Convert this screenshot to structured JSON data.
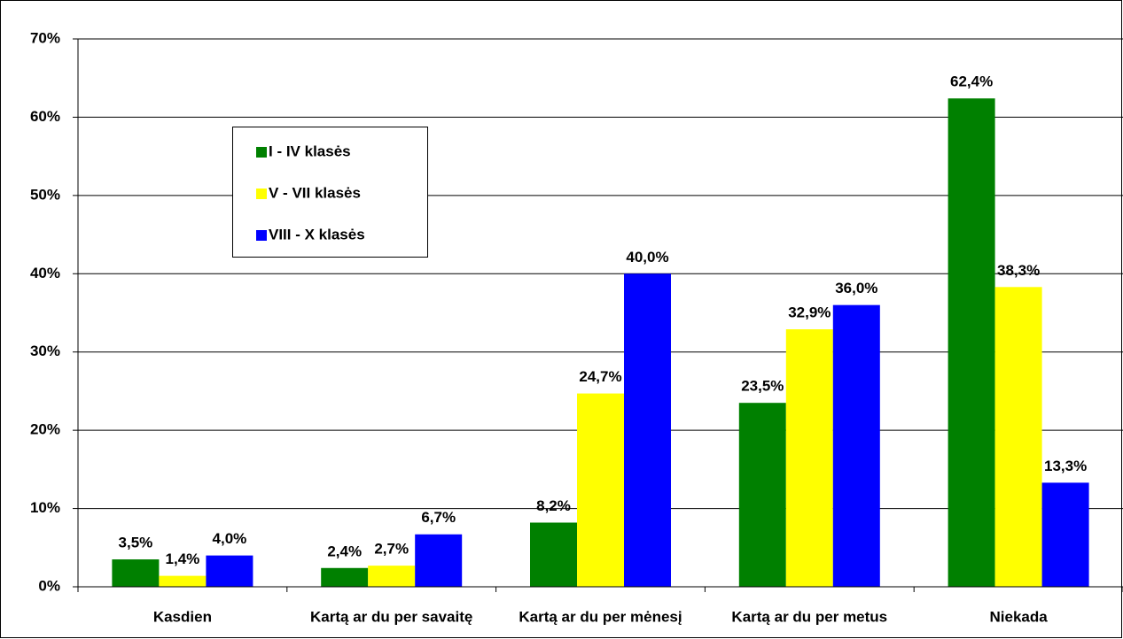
{
  "chart_data": {
    "type": "bar",
    "categories": [
      "Kasdien",
      "Kartą ar du per savaitę",
      "Kartą ar du per mėnesį",
      "Kartą ar du per metus",
      "Niekada"
    ],
    "series": [
      {
        "name": "I - IV klasės",
        "color": "#008000",
        "values": [
          3.5,
          2.4,
          8.2,
          23.5,
          62.4
        ],
        "value_labels": [
          "3,5%",
          "2,4%",
          "8,2%",
          "23,5%",
          "62,4%"
        ]
      },
      {
        "name": "V - VII klasės",
        "color": "#ffff00",
        "values": [
          1.4,
          2.7,
          24.7,
          32.9,
          38.3
        ],
        "value_labels": [
          "1,4%",
          "2,7%",
          "24,7%",
          "32,9%",
          "38,3%"
        ]
      },
      {
        "name": "VIII - X klasės",
        "color": "#0000ff",
        "values": [
          4.0,
          6.7,
          40.0,
          36.0,
          13.3
        ],
        "value_labels": [
          "4,0%",
          "6,7%",
          "40,0%",
          "36,0%",
          "13,3%"
        ]
      }
    ],
    "ylim": [
      0,
      70
    ],
    "yticks": [
      {
        "value": 0,
        "label": "0%"
      },
      {
        "value": 10,
        "label": "10%"
      },
      {
        "value": 20,
        "label": "20%"
      },
      {
        "value": 30,
        "label": "30%"
      },
      {
        "value": 40,
        "label": "40%"
      },
      {
        "value": 50,
        "label": "50%"
      },
      {
        "value": 60,
        "label": "60%"
      },
      {
        "value": 70,
        "label": "70%"
      }
    ],
    "grid": true,
    "legend": "upper-left"
  }
}
